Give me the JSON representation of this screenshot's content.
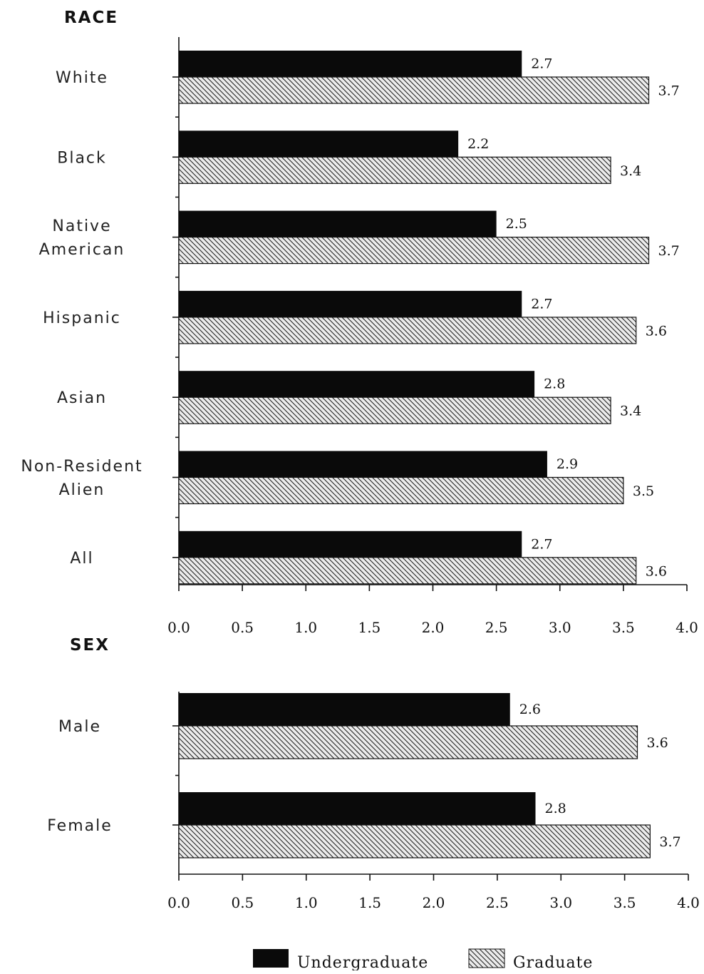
{
  "colors": {
    "undergraduate": "#0a0a0a",
    "graduate_fill": "#ececec",
    "graduate_hatch": "#222222",
    "axis": "#111111"
  },
  "legend": {
    "undergraduate": "Undergraduate",
    "graduate": "Graduate"
  },
  "chart_data": [
    {
      "type": "bar",
      "orientation": "horizontal",
      "title": "RACE",
      "categories": [
        "White",
        "Black",
        "Native American",
        "Hispanic",
        "Asian",
        "Non-Resident Alien",
        "All"
      ],
      "category_lines": [
        [
          "White"
        ],
        [
          "Black"
        ],
        [
          "Native",
          "American"
        ],
        [
          "Hispanic"
        ],
        [
          "Asian"
        ],
        [
          "Non-Resident",
          "Alien"
        ],
        [
          "All"
        ]
      ],
      "series": [
        {
          "name": "Undergraduate",
          "values": [
            2.7,
            2.2,
            2.5,
            2.7,
            2.8,
            2.9,
            2.7
          ]
        },
        {
          "name": "Graduate",
          "values": [
            3.7,
            3.4,
            3.7,
            3.6,
            3.4,
            3.5,
            3.6
          ]
        }
      ],
      "xlim": [
        0,
        4
      ],
      "xticks": [
        "0.0",
        "0.5",
        "1.0",
        "1.5",
        "2.0",
        "2.5",
        "3.0",
        "3.5",
        "4.0"
      ],
      "xlabel": "",
      "ylabel": "",
      "grid": false,
      "legend_position": "bottom"
    },
    {
      "type": "bar",
      "orientation": "horizontal",
      "title": "SEX",
      "categories": [
        "Male",
        "Female"
      ],
      "category_lines": [
        [
          "Male"
        ],
        [
          "Female"
        ]
      ],
      "series": [
        {
          "name": "Undergraduate",
          "values": [
            2.6,
            2.8
          ]
        },
        {
          "name": "Graduate",
          "values": [
            3.6,
            3.7
          ]
        }
      ],
      "xlim": [
        0,
        4
      ],
      "xticks": [
        "0.0",
        "0.5",
        "1.0",
        "1.5",
        "2.0",
        "2.5",
        "3.0",
        "3.5",
        "4.0"
      ],
      "xlabel": "",
      "ylabel": "",
      "grid": false,
      "legend_position": "bottom"
    }
  ]
}
